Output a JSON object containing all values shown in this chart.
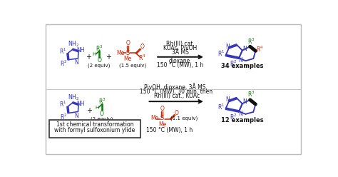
{
  "background_color": "#ffffff",
  "blue": "#3333bb",
  "green": "#007700",
  "red": "#cc2200",
  "black": "#111111",
  "top_reaction": {
    "cond1": "Rh(III) cat.",
    "cond2": "KOAc, PivOH",
    "cond3": "3Å MS",
    "cond4": "dioxane",
    "cond5": "150 °C (MW), 1 h",
    "examples": "34 examples"
  },
  "bottom_reaction": {
    "cond1": "PivOH, dioxane, 3Å MS,",
    "cond2": "150 °C (MW), 30 min, then",
    "cond3": "Rh(III) cat., KOAc",
    "cond4": "150 °C (MW), 1 h",
    "equiv_bottom": "(1.1 equiv)",
    "examples": "12 examples",
    "box1": "1st chemical transformation",
    "box2": "with formyl sulfoxonium ylide"
  },
  "figsize": [
    4.74,
    2.48
  ],
  "dpi": 100
}
